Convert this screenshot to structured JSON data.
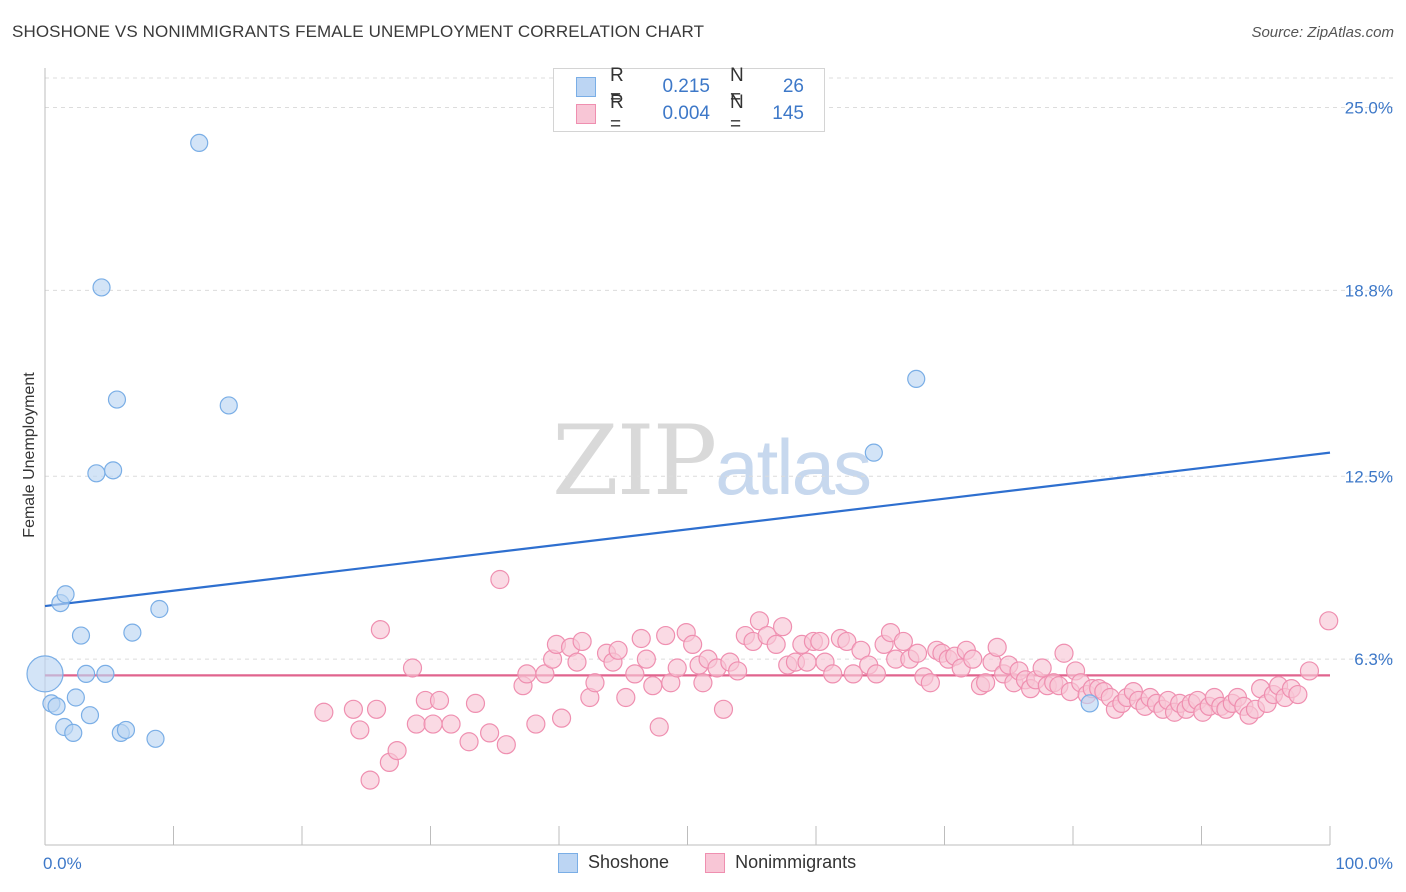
{
  "header": {
    "title": "SHOSHONE VS NONIMMIGRANTS FEMALE UNEMPLOYMENT CORRELATION CHART",
    "source": "Source: ZipAtlas.com"
  },
  "watermark": {
    "zip": "ZIP",
    "atlas": "atlas"
  },
  "legend": {
    "rows": [
      {
        "r_label": "R =",
        "r_value": "0.215",
        "n_label": "N =",
        "n_value": "26",
        "color": "#7aaee6",
        "fill": "#bcd5f3"
      },
      {
        "r_label": "R =",
        "r_value": "0.004",
        "n_label": "N =",
        "n_value": "145",
        "color": "#ef8fb0",
        "fill": "#f8c6d6"
      }
    ]
  },
  "bottom_legend": [
    {
      "label": "Shoshone",
      "color": "#7aaee6",
      "fill": "#bcd5f3"
    },
    {
      "label": "Nonimmigrants",
      "color": "#ef8fb0",
      "fill": "#f8c6d6"
    }
  ],
  "chart_data": {
    "type": "scatter",
    "title": "SHOSHONE VS NONIMMIGRANTS FEMALE UNEMPLOYMENT CORRELATION CHART",
    "xlabel": "",
    "ylabel": "Female Unemployment",
    "xlim": [
      0,
      100
    ],
    "ylim": [
      0,
      26
    ],
    "x_tick_labels": [
      "0.0%",
      "100.0%"
    ],
    "y_ticks": [
      6.3,
      12.5,
      18.8,
      25.0
    ],
    "y_tick_labels": [
      "6.3%",
      "12.5%",
      "18.8%",
      "25.0%"
    ],
    "grid": "horizontal dashed",
    "legend_position": "top-center",
    "series": [
      {
        "name": "Shoshone",
        "color": "#7aaee6",
        "fill": "#bcd5f3",
        "trend": {
          "x": [
            0,
            100
          ],
          "y": [
            8.1,
            13.3
          ],
          "color": "#2e6fcf"
        },
        "points": [
          {
            "x": 0.0,
            "y": 5.8,
            "big": true
          },
          {
            "x": 0.5,
            "y": 4.8
          },
          {
            "x": 0.9,
            "y": 4.7
          },
          {
            "x": 1.2,
            "y": 8.2
          },
          {
            "x": 1.6,
            "y": 8.5
          },
          {
            "x": 1.5,
            "y": 4.0
          },
          {
            "x": 2.2,
            "y": 3.8
          },
          {
            "x": 2.4,
            "y": 5.0
          },
          {
            "x": 2.8,
            "y": 7.1
          },
          {
            "x": 3.2,
            "y": 5.8
          },
          {
            "x": 3.5,
            "y": 4.4
          },
          {
            "x": 4.0,
            "y": 12.6
          },
          {
            "x": 4.4,
            "y": 18.9
          },
          {
            "x": 4.7,
            "y": 5.8
          },
          {
            "x": 5.3,
            "y": 12.7
          },
          {
            "x": 5.6,
            "y": 15.1
          },
          {
            "x": 5.9,
            "y": 3.8
          },
          {
            "x": 6.3,
            "y": 3.9
          },
          {
            "x": 6.8,
            "y": 7.2
          },
          {
            "x": 8.6,
            "y": 3.6
          },
          {
            "x": 8.9,
            "y": 8.0
          },
          {
            "x": 12.0,
            "y": 23.8
          },
          {
            "x": 14.3,
            "y": 14.9
          },
          {
            "x": 64.5,
            "y": 13.3
          },
          {
            "x": 67.8,
            "y": 15.8
          },
          {
            "x": 81.3,
            "y": 4.8
          }
        ]
      },
      {
        "name": "Nonimmigrants",
        "color": "#ef8fb0",
        "fill": "#f8c6d6",
        "trend": {
          "x": [
            0,
            100
          ],
          "y": [
            5.75,
            5.75
          ],
          "color": "#e0648e"
        },
        "points": [
          {
            "x": 21.7,
            "y": 4.5
          },
          {
            "x": 24.0,
            "y": 4.6
          },
          {
            "x": 24.5,
            "y": 3.9
          },
          {
            "x": 25.3,
            "y": 2.2
          },
          {
            "x": 25.8,
            "y": 4.6
          },
          {
            "x": 26.1,
            "y": 7.3
          },
          {
            "x": 26.8,
            "y": 2.8
          },
          {
            "x": 27.4,
            "y": 3.2
          },
          {
            "x": 28.6,
            "y": 6.0
          },
          {
            "x": 28.9,
            "y": 4.1
          },
          {
            "x": 29.6,
            "y": 4.9
          },
          {
            "x": 30.2,
            "y": 4.1
          },
          {
            "x": 30.7,
            "y": 4.9
          },
          {
            "x": 31.6,
            "y": 4.1
          },
          {
            "x": 33.0,
            "y": 3.5
          },
          {
            "x": 33.5,
            "y": 4.8
          },
          {
            "x": 34.6,
            "y": 3.8
          },
          {
            "x": 35.4,
            "y": 9.0
          },
          {
            "x": 35.9,
            "y": 3.4
          },
          {
            "x": 37.2,
            "y": 5.4
          },
          {
            "x": 37.5,
            "y": 5.8
          },
          {
            "x": 38.2,
            "y": 4.1
          },
          {
            "x": 38.9,
            "y": 5.8
          },
          {
            "x": 39.5,
            "y": 6.3
          },
          {
            "x": 39.8,
            "y": 6.8
          },
          {
            "x": 40.2,
            "y": 4.3
          },
          {
            "x": 40.9,
            "y": 6.7
          },
          {
            "x": 41.4,
            "y": 6.2
          },
          {
            "x": 41.8,
            "y": 6.9
          },
          {
            "x": 42.4,
            "y": 5.0
          },
          {
            "x": 42.8,
            "y": 5.5
          },
          {
            "x": 43.7,
            "y": 6.5
          },
          {
            "x": 44.2,
            "y": 6.2
          },
          {
            "x": 44.6,
            "y": 6.6
          },
          {
            "x": 45.2,
            "y": 5.0
          },
          {
            "x": 45.9,
            "y": 5.8
          },
          {
            "x": 46.4,
            "y": 7.0
          },
          {
            "x": 46.8,
            "y": 6.3
          },
          {
            "x": 47.3,
            "y": 5.4
          },
          {
            "x": 47.8,
            "y": 4.0
          },
          {
            "x": 48.3,
            "y": 7.1
          },
          {
            "x": 48.7,
            "y": 5.5
          },
          {
            "x": 49.2,
            "y": 6.0
          },
          {
            "x": 49.9,
            "y": 7.2
          },
          {
            "x": 50.4,
            "y": 6.8
          },
          {
            "x": 50.9,
            "y": 6.1
          },
          {
            "x": 51.2,
            "y": 5.5
          },
          {
            "x": 51.6,
            "y": 6.3
          },
          {
            "x": 52.3,
            "y": 6.0
          },
          {
            "x": 52.8,
            "y": 4.6
          },
          {
            "x": 53.3,
            "y": 6.2
          },
          {
            "x": 53.9,
            "y": 5.9
          },
          {
            "x": 54.5,
            "y": 7.1
          },
          {
            "x": 55.1,
            "y": 6.9
          },
          {
            "x": 55.6,
            "y": 7.6
          },
          {
            "x": 56.2,
            "y": 7.1
          },
          {
            "x": 56.9,
            "y": 6.8
          },
          {
            "x": 57.4,
            "y": 7.4
          },
          {
            "x": 57.8,
            "y": 6.1
          },
          {
            "x": 58.4,
            "y": 6.2
          },
          {
            "x": 58.9,
            "y": 6.8
          },
          {
            "x": 59.3,
            "y": 6.2
          },
          {
            "x": 59.8,
            "y": 6.9
          },
          {
            "x": 60.3,
            "y": 6.9
          },
          {
            "x": 60.7,
            "y": 6.2
          },
          {
            "x": 61.3,
            "y": 5.8
          },
          {
            "x": 61.9,
            "y": 7.0
          },
          {
            "x": 62.4,
            "y": 6.9
          },
          {
            "x": 62.9,
            "y": 5.8
          },
          {
            "x": 63.5,
            "y": 6.6
          },
          {
            "x": 64.1,
            "y": 6.1
          },
          {
            "x": 64.7,
            "y": 5.8
          },
          {
            "x": 65.3,
            "y": 6.8
          },
          {
            "x": 65.8,
            "y": 7.2
          },
          {
            "x": 66.2,
            "y": 6.3
          },
          {
            "x": 66.8,
            "y": 6.9
          },
          {
            "x": 67.3,
            "y": 6.3
          },
          {
            "x": 67.9,
            "y": 6.5
          },
          {
            "x": 68.4,
            "y": 5.7
          },
          {
            "x": 68.9,
            "y": 5.5
          },
          {
            "x": 69.4,
            "y": 6.6
          },
          {
            "x": 69.8,
            "y": 6.5
          },
          {
            "x": 70.3,
            "y": 6.3
          },
          {
            "x": 70.8,
            "y": 6.4
          },
          {
            "x": 71.3,
            "y": 6.0
          },
          {
            "x": 71.7,
            "y": 6.6
          },
          {
            "x": 72.2,
            "y": 6.3
          },
          {
            "x": 72.8,
            "y": 5.4
          },
          {
            "x": 73.2,
            "y": 5.5
          },
          {
            "x": 73.7,
            "y": 6.2
          },
          {
            "x": 74.1,
            "y": 6.7
          },
          {
            "x": 74.6,
            "y": 5.8
          },
          {
            "x": 75.0,
            "y": 6.1
          },
          {
            "x": 75.4,
            "y": 5.5
          },
          {
            "x": 75.8,
            "y": 5.9
          },
          {
            "x": 76.3,
            "y": 5.6
          },
          {
            "x": 76.7,
            "y": 5.3
          },
          {
            "x": 77.1,
            "y": 5.6
          },
          {
            "x": 77.6,
            "y": 6.0
          },
          {
            "x": 78.0,
            "y": 5.4
          },
          {
            "x": 78.5,
            "y": 5.5
          },
          {
            "x": 78.9,
            "y": 5.4
          },
          {
            "x": 79.3,
            "y": 6.5
          },
          {
            "x": 79.8,
            "y": 5.2
          },
          {
            "x": 80.2,
            "y": 5.9
          },
          {
            "x": 80.6,
            "y": 5.5
          },
          {
            "x": 81.1,
            "y": 5.1
          },
          {
            "x": 81.5,
            "y": 5.3
          },
          {
            "x": 82.0,
            "y": 5.3
          },
          {
            "x": 82.4,
            "y": 5.2
          },
          {
            "x": 82.9,
            "y": 5.0
          },
          {
            "x": 83.3,
            "y": 4.6
          },
          {
            "x": 83.8,
            "y": 4.8
          },
          {
            "x": 84.2,
            "y": 5.0
          },
          {
            "x": 84.7,
            "y": 5.2
          },
          {
            "x": 85.1,
            "y": 4.9
          },
          {
            "x": 85.6,
            "y": 4.7
          },
          {
            "x": 86.0,
            "y": 5.0
          },
          {
            "x": 86.5,
            "y": 4.8
          },
          {
            "x": 87.0,
            "y": 4.6
          },
          {
            "x": 87.4,
            "y": 4.9
          },
          {
            "x": 87.9,
            "y": 4.5
          },
          {
            "x": 88.3,
            "y": 4.8
          },
          {
            "x": 88.8,
            "y": 4.6
          },
          {
            "x": 89.2,
            "y": 4.8
          },
          {
            "x": 89.7,
            "y": 4.9
          },
          {
            "x": 90.1,
            "y": 4.5
          },
          {
            "x": 90.6,
            "y": 4.7
          },
          {
            "x": 91.0,
            "y": 5.0
          },
          {
            "x": 91.5,
            "y": 4.7
          },
          {
            "x": 91.9,
            "y": 4.6
          },
          {
            "x": 92.4,
            "y": 4.8
          },
          {
            "x": 92.8,
            "y": 5.0
          },
          {
            "x": 93.3,
            "y": 4.7
          },
          {
            "x": 93.7,
            "y": 4.4
          },
          {
            "x": 94.2,
            "y": 4.6
          },
          {
            "x": 94.6,
            "y": 5.3
          },
          {
            "x": 95.1,
            "y": 4.8
          },
          {
            "x": 95.6,
            "y": 5.1
          },
          {
            "x": 96.0,
            "y": 5.4
          },
          {
            "x": 96.5,
            "y": 5.0
          },
          {
            "x": 97.0,
            "y": 5.3
          },
          {
            "x": 97.5,
            "y": 5.1
          },
          {
            "x": 98.4,
            "y": 5.9
          },
          {
            "x": 99.9,
            "y": 7.6
          }
        ]
      }
    ]
  }
}
